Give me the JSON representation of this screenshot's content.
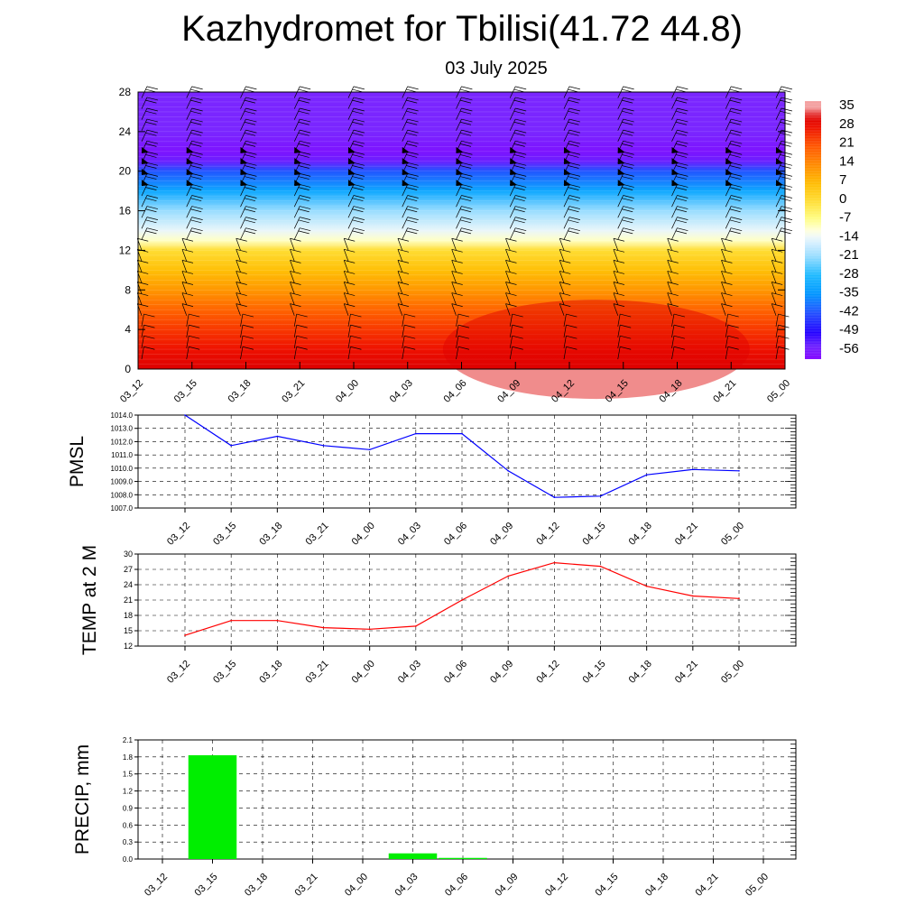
{
  "title": "Kazhydromet for Tbilisi(41.72 44.8)",
  "subtitle": "03 July 2025",
  "time_labels": [
    "03_12",
    "03_15",
    "03_18",
    "03_21",
    "04_00",
    "04_03",
    "04_06",
    "04_09",
    "04_12",
    "04_15",
    "04_18",
    "04_21",
    "05_00"
  ],
  "colors": {
    "pmsl_line": "#0000ff",
    "temp_line": "#ff0000",
    "precip_bar": "#00ee00",
    "grid": "#000000"
  },
  "chart_data": [
    {
      "type": "heatmap",
      "title": "",
      "xlabel": "",
      "ylabel": "",
      "ylim": [
        0,
        28
      ],
      "y_ticks": [
        0,
        4,
        8,
        12,
        16,
        20,
        24,
        28
      ],
      "x": [
        "03_12",
        "03_15",
        "03_18",
        "03_21",
        "04_00",
        "04_03",
        "04_06",
        "04_09",
        "04_12",
        "04_15",
        "04_18",
        "04_21",
        "05_00"
      ],
      "colorbar_labels": [
        35,
        28,
        21,
        14,
        7,
        0,
        -7,
        -14,
        -21,
        -28,
        -35,
        -42,
        -49,
        -56
      ],
      "temperature_profile": {
        "levels": [
          0,
          2,
          4,
          6,
          8,
          10,
          12,
          13,
          14,
          16,
          18,
          20,
          21,
          22,
          24,
          28
        ],
        "values": [
          32,
          28,
          24,
          19,
          12,
          6,
          0,
          -10,
          -14,
          -21,
          -32,
          -42,
          -55,
          -58,
          -56,
          -56
        ]
      },
      "overlay": "wind barbs"
    },
    {
      "type": "line",
      "ylabel": "PMSL",
      "ylim": [
        1007.0,
        1014.0
      ],
      "y_ticks": [
        "1007.0",
        "1008.0",
        "1009.0",
        "1010.0",
        "1011.0",
        "1012.0",
        "1013.0",
        "1014.0"
      ],
      "x": [
        "03_12",
        "03_15",
        "03_18",
        "03_21",
        "04_00",
        "04_03",
        "04_06",
        "04_09",
        "04_12",
        "04_15",
        "04_18",
        "04_21",
        "05_00"
      ],
      "series": [
        {
          "values": [
            1014.0,
            1011.7,
            1012.4,
            1011.7,
            1011.4,
            1012.6,
            1012.6,
            1009.8,
            1007.8,
            1007.9,
            1009.5,
            1009.9,
            1009.8
          ]
        }
      ]
    },
    {
      "type": "line",
      "ylabel": "TEMP at 2 M",
      "ylim": [
        12,
        30
      ],
      "y_ticks": [
        "12",
        "15",
        "18",
        "21",
        "24",
        "27",
        "30"
      ],
      "x": [
        "03_12",
        "03_15",
        "03_18",
        "03_21",
        "04_00",
        "04_03",
        "04_06",
        "04_09",
        "04_12",
        "04_15",
        "04_18",
        "04_21",
        "05_00"
      ],
      "series": [
        {
          "values": [
            14.1,
            17.0,
            17.0,
            15.6,
            15.3,
            15.9,
            21.0,
            25.7,
            28.3,
            27.6,
            23.7,
            21.8,
            21.3
          ]
        }
      ]
    },
    {
      "type": "bar",
      "ylabel": "PRECIP, mm",
      "ylim": [
        0.0,
        2.1
      ],
      "y_ticks": [
        "0.0",
        "0.3",
        "0.6",
        "0.9",
        "1.2",
        "1.5",
        "1.8",
        "2.1"
      ],
      "categories": [
        "03_12",
        "03_15",
        "03_18",
        "03_21",
        "04_00",
        "04_03",
        "04_06",
        "04_09",
        "04_12",
        "04_15",
        "04_18",
        "04_21",
        "05_00"
      ],
      "values": [
        0.0,
        1.83,
        0.0,
        0.0,
        0.0,
        0.1,
        0.02,
        0.0,
        0.0,
        0.0,
        0.0,
        0.0,
        0.0
      ]
    }
  ]
}
